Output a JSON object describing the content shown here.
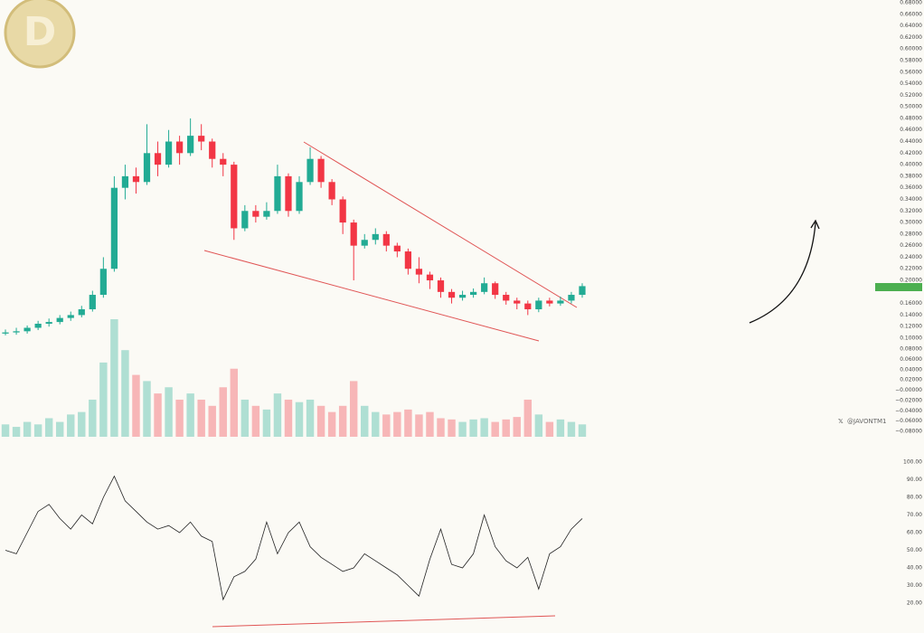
{
  "chart_data": {
    "type": "candlestick",
    "watermark": "@JAVONTM1",
    "up_color": "#22ab94",
    "down_color": "#f23645",
    "rsi_color": "#222222",
    "open": [
      0.108,
      0.11,
      0.112,
      0.118,
      0.125,
      0.128,
      0.135,
      0.14,
      0.15,
      0.175,
      0.22,
      0.36,
      0.38,
      0.37,
      0.42,
      0.4,
      0.44,
      0.42,
      0.45,
      0.44,
      0.41,
      0.4,
      0.29,
      0.32,
      0.31,
      0.32,
      0.38,
      0.32,
      0.37,
      0.41,
      0.37,
      0.34,
      0.3,
      0.26,
      0.27,
      0.28,
      0.26,
      0.25,
      0.22,
      0.21,
      0.2,
      0.18,
      0.17,
      0.175,
      0.18,
      0.195,
      0.175,
      0.165,
      0.16,
      0.15,
      0.165,
      0.16,
      0.165,
      0.175
    ],
    "high": [
      0.115,
      0.118,
      0.122,
      0.13,
      0.134,
      0.14,
      0.146,
      0.156,
      0.182,
      0.24,
      0.38,
      0.4,
      0.395,
      0.47,
      0.44,
      0.46,
      0.45,
      0.48,
      0.47,
      0.445,
      0.42,
      0.405,
      0.33,
      0.33,
      0.335,
      0.4,
      0.385,
      0.38,
      0.43,
      0.415,
      0.375,
      0.345,
      0.305,
      0.28,
      0.29,
      0.285,
      0.265,
      0.255,
      0.24,
      0.215,
      0.205,
      0.185,
      0.182,
      0.186,
      0.205,
      0.198,
      0.18,
      0.17,
      0.165,
      0.17,
      0.17,
      0.172,
      0.18,
      0.195
    ],
    "low": [
      0.105,
      0.106,
      0.108,
      0.114,
      0.12,
      0.124,
      0.13,
      0.136,
      0.146,
      0.17,
      0.215,
      0.34,
      0.35,
      0.365,
      0.38,
      0.395,
      0.4,
      0.415,
      0.425,
      0.395,
      0.38,
      0.27,
      0.285,
      0.3,
      0.305,
      0.315,
      0.31,
      0.315,
      0.365,
      0.36,
      0.33,
      0.28,
      0.2,
      0.255,
      0.262,
      0.25,
      0.24,
      0.21,
      0.195,
      0.185,
      0.17,
      0.16,
      0.165,
      0.17,
      0.176,
      0.168,
      0.158,
      0.15,
      0.14,
      0.145,
      0.155,
      0.156,
      0.16,
      0.17
    ],
    "close": [
      0.11,
      0.112,
      0.118,
      0.125,
      0.128,
      0.135,
      0.14,
      0.15,
      0.175,
      0.22,
      0.36,
      0.38,
      0.37,
      0.42,
      0.4,
      0.44,
      0.42,
      0.45,
      0.44,
      0.41,
      0.4,
      0.29,
      0.32,
      0.31,
      0.32,
      0.38,
      0.32,
      0.37,
      0.41,
      0.37,
      0.34,
      0.3,
      0.26,
      0.27,
      0.28,
      0.26,
      0.25,
      0.22,
      0.21,
      0.2,
      0.18,
      0.17,
      0.175,
      0.18,
      0.195,
      0.175,
      0.165,
      0.16,
      0.15,
      0.165,
      0.16,
      0.165,
      0.175,
      0.19
    ],
    "volume": [
      10,
      8,
      12,
      10,
      15,
      12,
      18,
      20,
      30,
      60,
      95,
      70,
      50,
      45,
      35,
      40,
      30,
      35,
      30,
      25,
      40,
      55,
      30,
      25,
      22,
      35,
      30,
      28,
      30,
      25,
      20,
      25,
      45,
      25,
      20,
      18,
      20,
      22,
      18,
      20,
      15,
      14,
      12,
      14,
      15,
      12,
      14,
      16,
      30,
      18,
      12,
      14,
      12,
      10
    ],
    "rsi": [
      50,
      48,
      60,
      72,
      76,
      68,
      62,
      70,
      65,
      80,
      92,
      78,
      72,
      66,
      62,
      64,
      60,
      66,
      58,
      55,
      22,
      35,
      38,
      45,
      66,
      48,
      60,
      66,
      52,
      46,
      42,
      38,
      40,
      48,
      44,
      40,
      36,
      30,
      24,
      45,
      62,
      42,
      40,
      48,
      70,
      52,
      44,
      40,
      46,
      28,
      48,
      52,
      62,
      68
    ],
    "ylim": [
      0.1,
      0.68
    ],
    "yticks": [
      {
        "value": 0.68,
        "label": "0.68000"
      },
      {
        "value": 0.66,
        "label": "0.66000"
      },
      {
        "value": 0.64,
        "label": "0.64000"
      },
      {
        "value": 0.62,
        "label": "0.62000"
      },
      {
        "value": 0.6,
        "label": "0.60000"
      },
      {
        "value": 0.58,
        "label": "0.58000"
      },
      {
        "value": 0.56,
        "label": "0.56000"
      },
      {
        "value": 0.54,
        "label": "0.54000"
      },
      {
        "value": 0.52,
        "label": "0.52000"
      },
      {
        "value": 0.5,
        "label": "0.50000"
      },
      {
        "value": 0.48,
        "label": "0.48000"
      },
      {
        "value": 0.46,
        "label": "0.46000"
      },
      {
        "value": 0.44,
        "label": "0.44000"
      },
      {
        "value": 0.42,
        "label": "0.42000"
      },
      {
        "value": 0.4,
        "label": "0.40000"
      },
      {
        "value": 0.38,
        "label": "0.38000"
      },
      {
        "value": 0.36,
        "label": "0.36000"
      },
      {
        "value": 0.34,
        "label": "0.34000"
      },
      {
        "value": 0.32,
        "label": "0.32000"
      },
      {
        "value": 0.3,
        "label": "0.30000"
      },
      {
        "value": 0.28,
        "label": "0.28000"
      },
      {
        "value": 0.26,
        "label": "0.26000"
      },
      {
        "value": 0.24,
        "label": "0.24000"
      },
      {
        "value": 0.22,
        "label": "0.22000"
      },
      {
        "value": 0.2,
        "label": "0.20000"
      },
      {
        "value": 0.16,
        "label": "0.16000"
      },
      {
        "value": 0.14,
        "label": "0.14000"
      },
      {
        "value": 0.12,
        "label": "0.12000"
      },
      {
        "value": 0.1,
        "label": "0.10000"
      }
    ],
    "y2lim": [
      -0.08,
      0.08
    ],
    "y2ticks": [
      {
        "value": 0.08,
        "label": "0.08000"
      },
      {
        "value": 0.06,
        "label": "0.06000"
      },
      {
        "value": 0.04,
        "label": "0.04000"
      },
      {
        "value": 0.02,
        "label": "0.02000"
      },
      {
        "value": 0,
        "label": "−0.00000"
      },
      {
        "value": -0.02,
        "label": "−0.02000"
      },
      {
        "value": -0.04,
        "label": "−0.04000"
      },
      {
        "value": -0.06,
        "label": "−0.06000"
      },
      {
        "value": -0.08,
        "label": "−0.08000"
      }
    ],
    "rsi_lim": [
      20,
      100
    ],
    "rsi_ticks": [
      {
        "value": 100,
        "label": "100.00"
      },
      {
        "value": 90,
        "label": "90.00"
      },
      {
        "value": 80,
        "label": "80.00"
      },
      {
        "value": 70,
        "label": "70.00"
      },
      {
        "value": 60,
        "label": "60.00"
      },
      {
        "value": 50,
        "label": "50.00"
      },
      {
        "value": 40,
        "label": "40.00"
      },
      {
        "value": 30,
        "label": "30.00"
      },
      {
        "value": 20,
        "label": "20.00"
      }
    ]
  }
}
